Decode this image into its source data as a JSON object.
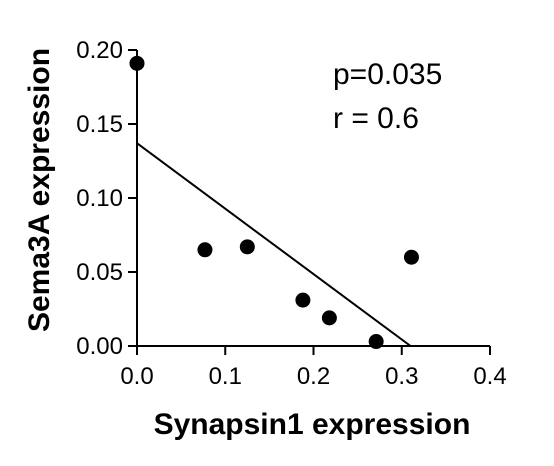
{
  "chart_data": {
    "type": "scatter",
    "title": "",
    "xlabel": "Synapsin1 expression",
    "ylabel": "Sema3A expression",
    "xlim": [
      0,
      0.4
    ],
    "ylim": [
      0,
      0.2
    ],
    "x_ticks": [
      "0.0",
      "0.1",
      "0.2",
      "0.3",
      "0.4"
    ],
    "y_ticks": [
      "0.00",
      "0.05",
      "0.10",
      "0.15",
      "0.20"
    ],
    "grid": false,
    "legend": "none",
    "series": [
      {
        "points": [
          {
            "x": 0.0,
            "y": 0.191
          },
          {
            "x": 0.077,
            "y": 0.065
          },
          {
            "x": 0.125,
            "y": 0.067
          },
          {
            "x": 0.188,
            "y": 0.031
          },
          {
            "x": 0.218,
            "y": 0.019
          },
          {
            "x": 0.271,
            "y": 0.003
          },
          {
            "x": 0.311,
            "y": 0.06
          }
        ]
      }
    ],
    "fit_line": {
      "x": [
        0.0,
        0.31
      ],
      "y": [
        0.137,
        0.0
      ]
    },
    "annotations": [
      "p=0.035",
      "r = 0.6"
    ],
    "colors": {
      "marks": "#000000"
    }
  }
}
